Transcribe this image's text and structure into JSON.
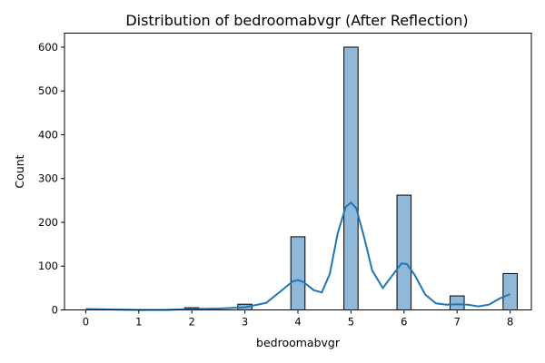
{
  "chart_data": {
    "type": "bar",
    "title": "Distribution of bedroomabvgr (After Reflection)",
    "xlabel": "bedroomabvgr",
    "ylabel": "Count",
    "xlim": [
      -0.4,
      8.4
    ],
    "ylim": [
      0,
      632
    ],
    "xticks": [
      0,
      1,
      2,
      3,
      4,
      5,
      6,
      7,
      8
    ],
    "yticks": [
      0,
      100,
      200,
      300,
      400,
      500,
      600
    ],
    "bar_color": "#8fb8d9",
    "kde_color": "#1f77b4",
    "bin_width": 0.2667,
    "bars": [
      {
        "x": 0,
        "count": 0
      },
      {
        "x": 2,
        "count": 5
      },
      {
        "x": 3,
        "count": 13
      },
      {
        "x": 4,
        "count": 167
      },
      {
        "x": 5,
        "count": 600
      },
      {
        "x": 6,
        "count": 262
      },
      {
        "x": 7,
        "count": 32
      },
      {
        "x": 8,
        "count": 83
      }
    ],
    "kde": {
      "x": [
        0,
        0.5,
        1,
        1.5,
        2,
        2.5,
        3,
        3.4,
        3.7,
        3.9,
        4.0,
        4.1,
        4.3,
        4.45,
        4.6,
        4.75,
        4.9,
        5.0,
        5.1,
        5.25,
        5.4,
        5.6,
        5.8,
        5.95,
        6.05,
        6.2,
        6.4,
        6.6,
        6.8,
        7.0,
        7.2,
        7.4,
        7.6,
        7.8,
        8.0
      ],
      "y": [
        2,
        1,
        0,
        0,
        2,
        3,
        6,
        16,
        45,
        65,
        68,
        64,
        45,
        40,
        82,
        175,
        235,
        245,
        232,
        165,
        90,
        50,
        82,
        106,
        105,
        80,
        35,
        15,
        12,
        13,
        12,
        8,
        12,
        26,
        36
      ]
    }
  }
}
